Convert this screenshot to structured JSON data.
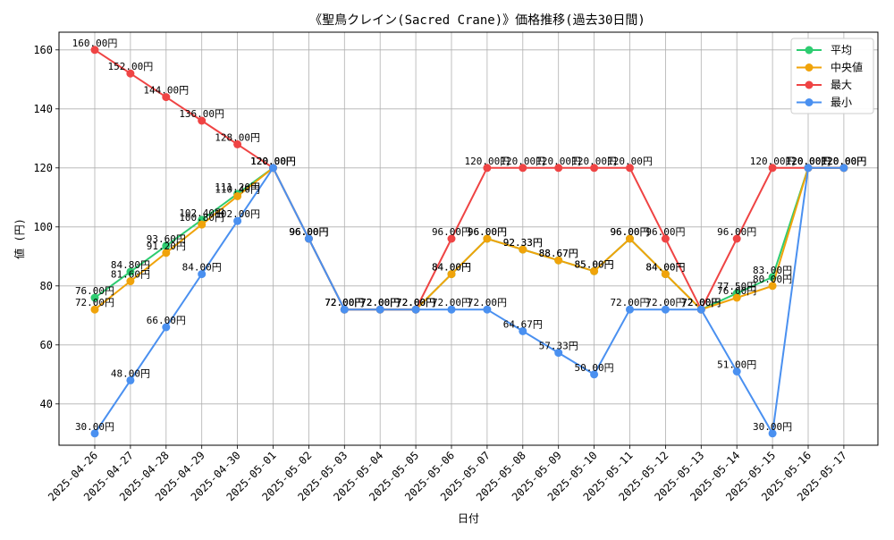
{
  "chart_data": {
    "type": "line",
    "title": "《聖鳥クレイン(Sacred Crane)》価格推移(過去30日間)",
    "xlabel": "日付",
    "ylabel": "値 (円)",
    "ylim": [
      26,
      166
    ],
    "yticks": [
      40,
      60,
      80,
      100,
      120,
      140,
      160
    ],
    "grid": true,
    "legend_position": "top-right",
    "label_suffix": "円",
    "categories": [
      "2025-04-26",
      "2025-04-27",
      "2025-04-28",
      "2025-04-29",
      "2025-04-30",
      "2025-05-01",
      "2025-05-02",
      "2025-05-03",
      "2025-05-04",
      "2025-05-05",
      "2025-05-06",
      "2025-05-07",
      "2025-05-08",
      "2025-05-09",
      "2025-05-10",
      "2025-05-11",
      "2025-05-12",
      "2025-05-13",
      "2025-05-14",
      "2025-05-15",
      "2025-05-16",
      "2025-05-17"
    ],
    "series": [
      {
        "name": "平均",
        "color": "#2ecc71",
        "values": [
          76.0,
          84.8,
          93.6,
          102.4,
          111.2,
          120.0,
          96.0,
          72.0,
          72.0,
          72.0,
          84.0,
          96.0,
          92.33,
          88.67,
          85.0,
          96.0,
          84.0,
          72.0,
          77.5,
          83.0,
          120.0,
          120.0
        ]
      },
      {
        "name": "中央値",
        "color": "#f0a30a",
        "values": [
          72.0,
          81.6,
          91.2,
          100.8,
          110.4,
          120.0,
          96.0,
          72.0,
          72.0,
          72.0,
          84.0,
          96.0,
          92.33,
          88.67,
          85.0,
          96.0,
          84.0,
          72.0,
          76.0,
          80.0,
          120.0,
          120.0
        ]
      },
      {
        "name": "最大",
        "color": "#ef4444",
        "values": [
          160.0,
          152.0,
          144.0,
          136.0,
          128.0,
          120.0,
          96.0,
          72.0,
          72.0,
          72.0,
          96.0,
          120.0,
          120.0,
          120.0,
          120.0,
          120.0,
          96.0,
          72.0,
          96.0,
          120.0,
          120.0,
          120.0
        ]
      },
      {
        "name": "最小",
        "color": "#4a90f0",
        "values": [
          30.0,
          48.0,
          66.0,
          84.0,
          102.0,
          120.0,
          96.0,
          72.0,
          72.0,
          72.0,
          72.0,
          72.0,
          64.67,
          57.33,
          50.0,
          72.0,
          72.0,
          72.0,
          51.0,
          30.0,
          120.0,
          120.0
        ]
      }
    ]
  }
}
